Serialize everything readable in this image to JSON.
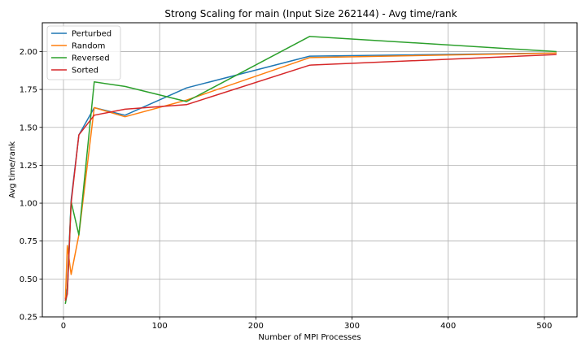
{
  "chart_data": {
    "type": "line",
    "title": "Strong Scaling for main (Input Size 262144) - Avg time/rank",
    "xlabel": "Number of MPI Processes",
    "ylabel": "Avg time/rank",
    "xlim": [
      -22,
      534
    ],
    "ylim": [
      0.25,
      2.19
    ],
    "xticks": [
      0,
      100,
      200,
      300,
      400,
      500
    ],
    "yticks": [
      0.25,
      0.5,
      0.75,
      1.0,
      1.25,
      1.5,
      1.75,
      2.0
    ],
    "ytick_labels": [
      "0.25",
      "0.50",
      "0.75",
      "1.00",
      "1.25",
      "1.50",
      "1.75",
      "2.00"
    ],
    "grid": true,
    "legend_position": "top-left",
    "x": [
      2,
      4,
      8,
      16,
      32,
      64,
      128,
      256,
      512
    ],
    "series": [
      {
        "name": "Perturbed",
        "color": "#1f77b4",
        "values": [
          0.37,
          0.44,
          1.02,
          1.45,
          1.63,
          1.58,
          1.76,
          1.97,
          1.99
        ]
      },
      {
        "name": "Random",
        "color": "#ff7f0e",
        "values": [
          0.37,
          0.72,
          0.53,
          0.79,
          1.63,
          1.57,
          1.68,
          1.96,
          1.99
        ]
      },
      {
        "name": "Reversed",
        "color": "#2ca02c",
        "values": [
          0.34,
          0.41,
          1.01,
          0.79,
          1.8,
          1.77,
          1.67,
          2.1,
          2.0
        ]
      },
      {
        "name": "Sorted",
        "color": "#d62728",
        "values": [
          0.36,
          0.4,
          1.0,
          1.45,
          1.58,
          1.62,
          1.65,
          1.91,
          1.98
        ]
      }
    ]
  }
}
